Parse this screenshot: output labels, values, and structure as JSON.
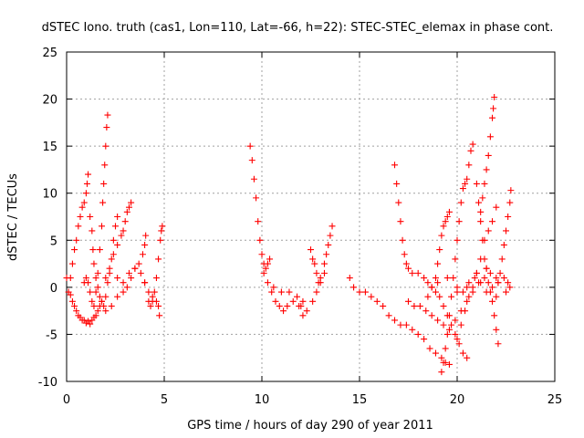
{
  "chart_data": {
    "type": "scatter",
    "title": "dSTEC Iono. truth (cas1, Lon=110, Lat=-66, h=22): STEC-STEC_elemax in phase cont.",
    "xlabel": "GPS time / hours of day 290 of year 2011",
    "ylabel": "dSTEC  / TECUs",
    "xlim": [
      0,
      25
    ],
    "ylim": [
      -10,
      25
    ],
    "xticks": [
      "0",
      "5",
      "10",
      "15",
      "20",
      "25"
    ],
    "yticks": [
      "-10",
      "-5",
      "0",
      "5",
      "10",
      "15",
      "20",
      "25"
    ],
    "grid": true,
    "marker": "+",
    "color": "#ff0000",
    "series": [
      {
        "points": [
          [
            0.0,
            1.0
          ],
          [
            0.1,
            -0.5
          ],
          [
            0.2,
            1.0
          ],
          [
            0.3,
            2.5
          ],
          [
            0.4,
            4.0
          ],
          [
            0.5,
            5.0
          ],
          [
            0.6,
            6.5
          ],
          [
            0.7,
            7.5
          ],
          [
            0.8,
            8.5
          ],
          [
            0.9,
            9.0
          ],
          [
            1.0,
            10.0
          ],
          [
            1.05,
            11.0
          ],
          [
            1.1,
            12.0
          ]
        ]
      },
      {
        "points": [
          [
            0.2,
            -0.8
          ],
          [
            0.3,
            -1.5
          ],
          [
            0.4,
            -2.0
          ],
          [
            0.5,
            -2.5
          ],
          [
            0.6,
            -3.0
          ],
          [
            0.7,
            -3.2
          ],
          [
            0.8,
            -3.5
          ],
          [
            0.9,
            -3.5
          ],
          [
            1.0,
            -3.8
          ],
          [
            1.1,
            -3.6
          ],
          [
            1.2,
            -3.9
          ],
          [
            1.3,
            -3.5
          ],
          [
            1.4,
            -3.2
          ],
          [
            1.5,
            -3.0
          ],
          [
            1.6,
            -2.5
          ],
          [
            1.7,
            -2.0
          ],
          [
            1.8,
            -1.5
          ]
        ]
      },
      {
        "points": [
          [
            0.9,
            0.5
          ],
          [
            1.0,
            1.0
          ],
          [
            1.1,
            0.5
          ],
          [
            1.2,
            -0.5
          ],
          [
            1.3,
            -1.5
          ],
          [
            1.4,
            -2.0
          ],
          [
            1.5,
            -0.5
          ],
          [
            1.6,
            1.5
          ],
          [
            1.7,
            4.0
          ],
          [
            1.8,
            6.5
          ],
          [
            1.85,
            9.0
          ],
          [
            1.9,
            11.0
          ],
          [
            1.95,
            13.0
          ],
          [
            2.0,
            15.0
          ],
          [
            2.05,
            17.0
          ],
          [
            2.1,
            18.3
          ]
        ]
      },
      {
        "points": [
          [
            1.2,
            7.5
          ],
          [
            1.3,
            6.0
          ],
          [
            1.35,
            4.0
          ],
          [
            1.4,
            2.5
          ],
          [
            1.5,
            1.0
          ],
          [
            1.6,
            0.0
          ],
          [
            1.7,
            -1.0
          ],
          [
            1.8,
            -1.5
          ],
          [
            1.9,
            -2.0
          ],
          [
            2.0,
            -1.0
          ],
          [
            2.1,
            0.5
          ],
          [
            2.2,
            1.5
          ],
          [
            2.3,
            3.0
          ],
          [
            2.4,
            5.0
          ],
          [
            2.5,
            6.5
          ],
          [
            2.6,
            7.5
          ]
        ]
      },
      {
        "points": [
          [
            2.0,
            1.0
          ],
          [
            2.2,
            2.0
          ],
          [
            2.4,
            3.5
          ],
          [
            2.6,
            4.5
          ],
          [
            2.8,
            5.5
          ],
          [
            2.9,
            6.0
          ],
          [
            3.0,
            7.0
          ],
          [
            3.1,
            8.0
          ],
          [
            3.2,
            8.5
          ],
          [
            3.3,
            9.0
          ]
        ]
      },
      {
        "points": [
          [
            2.0,
            -2.5
          ],
          [
            2.3,
            -2.0
          ],
          [
            2.6,
            -1.0
          ],
          [
            2.9,
            -0.5
          ],
          [
            3.1,
            0.0
          ],
          [
            3.3,
            1.0
          ],
          [
            3.5,
            2.0
          ],
          [
            3.7,
            2.5
          ],
          [
            3.9,
            3.5
          ],
          [
            4.0,
            4.5
          ],
          [
            4.05,
            5.5
          ]
        ]
      },
      {
        "points": [
          [
            2.6,
            1.0
          ],
          [
            2.9,
            0.5
          ],
          [
            3.2,
            1.5
          ],
          [
            3.5,
            2.0
          ],
          [
            3.8,
            1.5
          ],
          [
            4.0,
            0.5
          ],
          [
            4.2,
            -0.5
          ],
          [
            4.4,
            -1.0
          ],
          [
            4.6,
            -1.5
          ],
          [
            4.7,
            -2.0
          ],
          [
            4.75,
            -3.0
          ]
        ]
      },
      {
        "points": [
          [
            4.0,
            0.5
          ],
          [
            4.2,
            -1.5
          ],
          [
            4.3,
            -2.0
          ],
          [
            4.4,
            -1.5
          ],
          [
            4.5,
            -0.5
          ],
          [
            4.6,
            1.0
          ],
          [
            4.7,
            3.0
          ],
          [
            4.8,
            5.0
          ],
          [
            4.85,
            6.0
          ],
          [
            4.9,
            6.5
          ]
        ]
      },
      {
        "points": [
          [
            9.4,
            15.0
          ],
          [
            9.5,
            13.5
          ],
          [
            9.6,
            11.5
          ],
          [
            9.7,
            9.5
          ],
          [
            9.8,
            7.0
          ],
          [
            9.9,
            5.0
          ],
          [
            10.0,
            3.5
          ],
          [
            10.1,
            2.5
          ],
          [
            10.2,
            2.0
          ],
          [
            10.3,
            2.5
          ],
          [
            10.4,
            3.0
          ]
        ]
      },
      {
        "points": [
          [
            10.1,
            1.5
          ],
          [
            10.3,
            0.5
          ],
          [
            10.5,
            -0.5
          ],
          [
            10.7,
            -1.5
          ],
          [
            10.9,
            -2.0
          ],
          [
            11.1,
            -2.5
          ],
          [
            11.3,
            -2.0
          ],
          [
            11.6,
            -1.5
          ],
          [
            11.9,
            -2.0
          ],
          [
            12.1,
            -1.5
          ]
        ]
      },
      {
        "points": [
          [
            10.6,
            0.0
          ],
          [
            11.0,
            -0.5
          ],
          [
            11.4,
            -0.5
          ],
          [
            11.8,
            -1.0
          ],
          [
            12.0,
            -2.0
          ],
          [
            12.1,
            -3.0
          ],
          [
            12.3,
            -2.5
          ],
          [
            12.6,
            -1.5
          ],
          [
            12.8,
            -0.5
          ],
          [
            13.0,
            0.5
          ],
          [
            13.2,
            1.5
          ]
        ]
      },
      {
        "points": [
          [
            12.5,
            4.0
          ],
          [
            12.6,
            3.0
          ],
          [
            12.7,
            2.5
          ],
          [
            12.8,
            1.5
          ],
          [
            12.9,
            0.5
          ],
          [
            13.0,
            1.0
          ],
          [
            13.2,
            2.5
          ],
          [
            13.3,
            3.5
          ],
          [
            13.4,
            4.5
          ],
          [
            13.5,
            5.5
          ],
          [
            13.6,
            6.5
          ]
        ]
      },
      {
        "points": [
          [
            14.5,
            1.0
          ],
          [
            14.7,
            0.0
          ],
          [
            15.0,
            -0.5
          ],
          [
            15.3,
            -0.5
          ],
          [
            15.6,
            -1.0
          ],
          [
            15.9,
            -1.5
          ],
          [
            16.2,
            -2.0
          ],
          [
            16.5,
            -3.0
          ],
          [
            16.8,
            -3.5
          ],
          [
            17.1,
            -4.0
          ],
          [
            17.4,
            -4.0
          ],
          [
            17.7,
            -4.5
          ],
          [
            18.0,
            -5.0
          ],
          [
            18.3,
            -5.5
          ],
          [
            18.6,
            -6.5
          ],
          [
            18.9,
            -7.0
          ],
          [
            19.2,
            -7.5
          ],
          [
            19.4,
            -8.0
          ],
          [
            19.6,
            -8.2
          ]
        ]
      },
      {
        "points": [
          [
            16.8,
            13.0
          ],
          [
            16.9,
            11.0
          ],
          [
            17.0,
            9.0
          ],
          [
            17.1,
            7.0
          ],
          [
            17.2,
            5.0
          ],
          [
            17.3,
            3.5
          ],
          [
            17.4,
            2.5
          ],
          [
            17.5,
            2.0
          ],
          [
            17.7,
            1.5
          ],
          [
            18.0,
            1.5
          ],
          [
            18.3,
            1.0
          ],
          [
            18.5,
            0.5
          ],
          [
            18.7,
            0.0
          ],
          [
            18.9,
            -0.5
          ],
          [
            19.1,
            -1.0
          ],
          [
            19.3,
            -2.0
          ],
          [
            19.5,
            -3.0
          ],
          [
            19.7,
            -4.0
          ],
          [
            19.9,
            -5.0
          ],
          [
            20.1,
            -6.0
          ],
          [
            20.3,
            -7.0
          ],
          [
            20.5,
            -7.5
          ]
        ]
      },
      {
        "points": [
          [
            19.2,
            -9.0
          ],
          [
            19.3,
            -8.0
          ],
          [
            19.4,
            -6.5
          ],
          [
            19.5,
            -5.0
          ],
          [
            19.6,
            -3.0
          ],
          [
            19.7,
            -1.0
          ],
          [
            19.8,
            1.0
          ],
          [
            19.9,
            3.0
          ],
          [
            20.0,
            5.0
          ],
          [
            20.1,
            7.0
          ],
          [
            20.2,
            9.0
          ],
          [
            20.3,
            10.5
          ],
          [
            20.4,
            11.0
          ],
          [
            20.5,
            11.5
          ],
          [
            20.6,
            13.0
          ],
          [
            20.7,
            14.5
          ],
          [
            20.8,
            15.2
          ]
        ]
      },
      {
        "points": [
          [
            18.5,
            -1.0
          ],
          [
            18.7,
            0.0
          ],
          [
            18.9,
            1.0
          ],
          [
            19.0,
            2.5
          ],
          [
            19.1,
            4.0
          ],
          [
            19.2,
            5.5
          ],
          [
            19.3,
            6.5
          ],
          [
            19.4,
            7.0
          ],
          [
            19.5,
            7.5
          ],
          [
            19.6,
            8.0
          ]
        ]
      },
      {
        "points": [
          [
            17.5,
            -1.5
          ],
          [
            17.8,
            -2.0
          ],
          [
            18.1,
            -2.0
          ],
          [
            18.4,
            -2.5
          ],
          [
            18.7,
            -3.0
          ],
          [
            19.0,
            -3.5
          ],
          [
            19.3,
            -4.0
          ],
          [
            19.6,
            -4.5
          ],
          [
            19.9,
            -3.5
          ],
          [
            20.2,
            -2.5
          ],
          [
            20.5,
            -1.5
          ],
          [
            20.8,
            -0.5
          ],
          [
            21.1,
            0.5
          ],
          [
            21.4,
            1.0
          ],
          [
            21.7,
            1.5
          ]
        ]
      },
      {
        "points": [
          [
            20.0,
            -5.5
          ],
          [
            20.2,
            -4.0
          ],
          [
            20.4,
            -2.5
          ],
          [
            20.6,
            -1.0
          ],
          [
            20.8,
            0.0
          ],
          [
            21.0,
            1.5
          ],
          [
            21.2,
            3.0
          ],
          [
            21.4,
            5.0
          ],
          [
            21.6,
            6.0
          ],
          [
            21.8,
            7.0
          ],
          [
            22.0,
            8.5
          ]
        ]
      },
      {
        "points": [
          [
            21.0,
            11.0
          ],
          [
            21.1,
            9.0
          ],
          [
            21.2,
            7.0
          ],
          [
            21.3,
            5.0
          ],
          [
            21.4,
            3.0
          ],
          [
            21.5,
            2.0
          ],
          [
            21.6,
            0.5
          ],
          [
            21.7,
            -0.5
          ],
          [
            21.8,
            -1.5
          ],
          [
            21.9,
            -3.0
          ],
          [
            22.0,
            -4.5
          ],
          [
            22.1,
            -6.0
          ]
        ]
      },
      {
        "points": [
          [
            21.2,
            8.0
          ],
          [
            21.3,
            9.5
          ],
          [
            21.4,
            11.0
          ],
          [
            21.5,
            12.5
          ],
          [
            21.6,
            14.0
          ],
          [
            21.7,
            16.0
          ],
          [
            21.8,
            18.0
          ],
          [
            21.85,
            19.0
          ],
          [
            21.9,
            20.2
          ]
        ]
      },
      {
        "points": [
          [
            20.0,
            0.0
          ],
          [
            20.3,
            -0.5
          ],
          [
            20.6,
            0.5
          ],
          [
            20.9,
            1.0
          ],
          [
            21.2,
            0.5
          ],
          [
            21.5,
            -0.5
          ],
          [
            21.8,
            0.0
          ],
          [
            22.1,
            0.5
          ],
          [
            22.4,
            1.0
          ],
          [
            22.6,
            0.5
          ],
          [
            22.7,
            0.0
          ]
        ]
      },
      {
        "points": [
          [
            22.0,
            -1.0
          ],
          [
            22.1,
            0.5
          ],
          [
            22.2,
            1.5
          ],
          [
            22.3,
            3.0
          ],
          [
            22.4,
            4.5
          ],
          [
            22.5,
            6.0
          ],
          [
            22.6,
            7.5
          ],
          [
            22.7,
            9.0
          ],
          [
            22.75,
            10.3
          ]
        ]
      },
      {
        "points": [
          [
            19.0,
            0.5
          ],
          [
            19.5,
            1.0
          ],
          [
            20.0,
            -0.5
          ],
          [
            20.5,
            0.0
          ],
          [
            21.0,
            1.5
          ],
          [
            21.5,
            2.0
          ],
          [
            22.0,
            1.0
          ],
          [
            22.5,
            -0.5
          ]
        ]
      }
    ]
  }
}
